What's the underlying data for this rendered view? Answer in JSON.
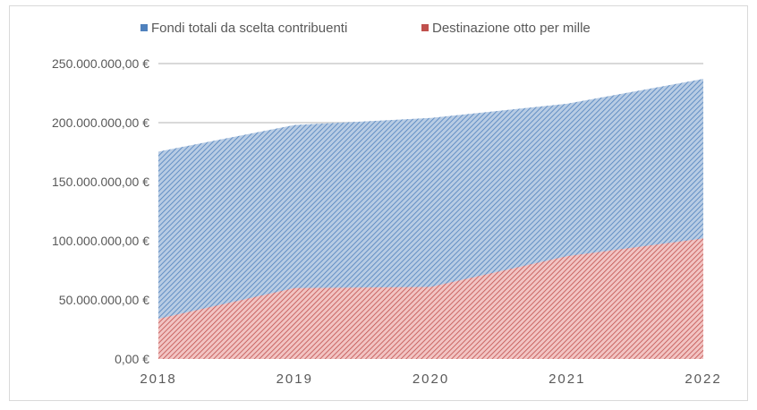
{
  "chart_data": {
    "type": "area",
    "title": "",
    "xlabel": "",
    "ylabel": "",
    "categories": [
      "2018",
      "2019",
      "2020",
      "2021",
      "2022"
    ],
    "series": [
      {
        "name": "Fondi totali da scelta contribuenti",
        "color": "#4f81bd",
        "values": [
          175500000,
          198000000,
          204000000,
          216000000,
          237000000
        ]
      },
      {
        "name": "Destinazione otto per mille",
        "color": "#c0504d",
        "values": [
          34000000,
          60000000,
          61000000,
          87000000,
          102000000
        ]
      }
    ],
    "ylim": [
      0,
      250000000
    ],
    "yticks": [
      0,
      50000000,
      100000000,
      150000000,
      200000000,
      250000000
    ],
    "ytick_labels": [
      "0,00 €",
      "50.000.000,00 €",
      "100.000.000,00 €",
      "150.000.000,00 €",
      "200.000.000,00 €",
      "250.000.000,00 €"
    ],
    "grid": true,
    "legend_position": "top"
  }
}
